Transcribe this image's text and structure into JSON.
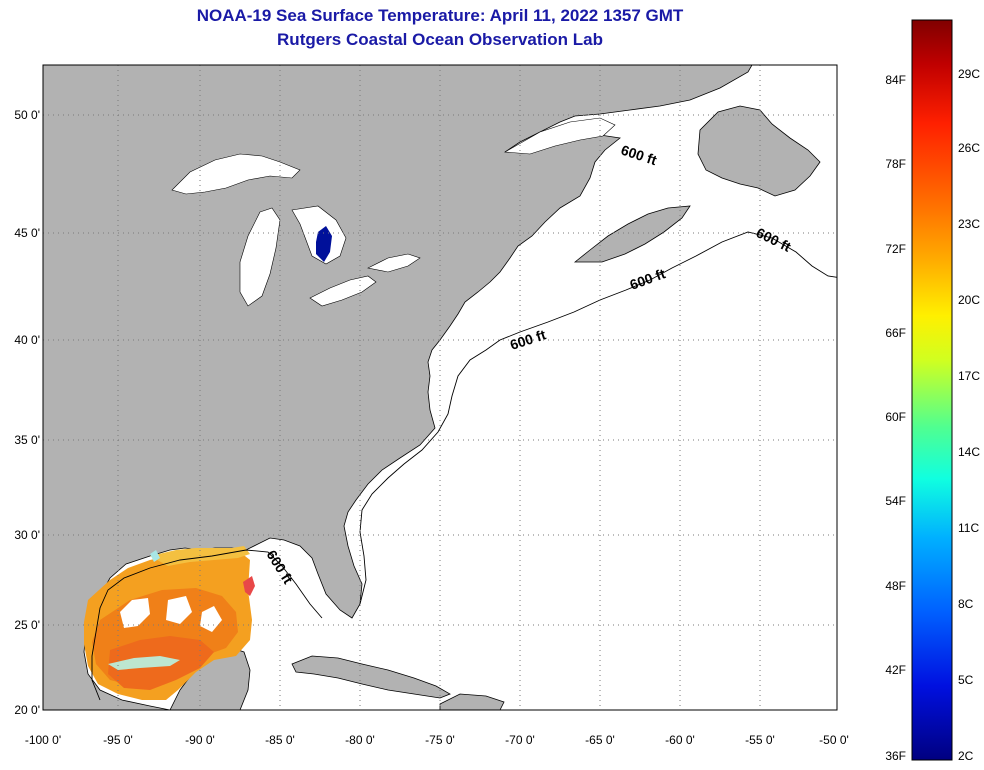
{
  "header": {
    "title": "NOAA-19 Sea Surface Temperature:  April 11, 2022 1357 GMT",
    "subtitle": "Rutgers Coastal Ocean Observation Lab"
  },
  "map": {
    "lat_labels": [
      "50 0'",
      "45 0'",
      "40 0'",
      "35 0'",
      "30 0'",
      "25 0'",
      "20 0'"
    ],
    "lon_labels": [
      "-100 0'",
      "-95 0'",
      "-90 0'",
      "-85 0'",
      "-80 0'",
      "-75 0'",
      "-70 0'",
      "-65 0'",
      "-60 0'",
      "-55 0'",
      "-50 0'"
    ],
    "isobath_labels": [
      "600 ft",
      "600 ft",
      "600 ft",
      "600 ft",
      "600 ft"
    ],
    "land_color": "#b2b2b2",
    "water_color": "#ffffff"
  },
  "colorbar": {
    "f_labels": [
      "84F",
      "78F",
      "72F",
      "66F",
      "60F",
      "54F",
      "48F",
      "42F",
      "36F"
    ],
    "c_labels": [
      "29C",
      "26C",
      "23C",
      "20C",
      "17C",
      "14C",
      "11C",
      "8C",
      "5C",
      "2C"
    ],
    "colors_top_to_bottom": [
      "#800000",
      "#c80000",
      "#ff2000",
      "#ff6a00",
      "#ffa000",
      "#ffd800",
      "#e6ff10",
      "#90ff60",
      "#30ffc0",
      "#00e0ff",
      "#0090ff",
      "#0040ff",
      "#0008c0",
      "#000080"
    ]
  }
}
